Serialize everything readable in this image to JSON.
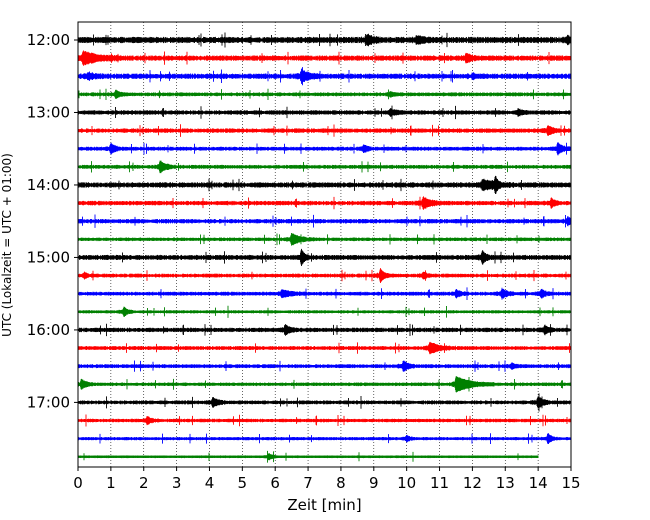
{
  "chart_data": {
    "type": "line",
    "subtype": "helicorder seismogram",
    "xlabel": "Zeit  [min]",
    "ylabel": "UTC (Lokalzeit = UTC + 01:00)",
    "xlim": [
      0,
      15
    ],
    "x_ticks": [
      "0",
      "1",
      "2",
      "3",
      "4",
      "5",
      "6",
      "7",
      "8",
      "9",
      "10",
      "11",
      "12",
      "13",
      "14",
      "15"
    ],
    "y_tick_labels": [
      "12:00",
      "13:00",
      "14:00",
      "15:00",
      "16:00",
      "17:00"
    ],
    "grid": "vertical dotted lines at each minute",
    "trace_minutes": 15,
    "trace_colors": [
      "#000000",
      "#ff0000",
      "#0000ff",
      "#008000"
    ],
    "traces": [
      {
        "start": "12:00",
        "color": "#000000",
        "amplitude": 0.35,
        "end_min": 15,
        "events": [
          {
            "t": 8.8,
            "a": 0.45,
            "d": 0.5
          },
          {
            "t": 10.3,
            "a": 0.3,
            "d": 0.6
          },
          {
            "t": 14.9,
            "a": 0.3,
            "d": 0.2
          }
        ]
      },
      {
        "start": "12:15",
        "color": "#ff0000",
        "amplitude": 0.3,
        "end_min": 15,
        "events": [
          {
            "t": 0.15,
            "a": 0.6,
            "d": 1.2
          },
          {
            "t": 11.8,
            "a": 0.35,
            "d": 0.5
          }
        ]
      },
      {
        "start": "12:30",
        "color": "#0000ff",
        "amplitude": 0.3,
        "end_min": 15,
        "events": [
          {
            "t": 0.3,
            "a": 0.3,
            "d": 0.5
          },
          {
            "t": 6.8,
            "a": 0.55,
            "d": 0.6
          },
          {
            "t": 12.0,
            "a": 0.2,
            "d": 0.3
          }
        ]
      },
      {
        "start": "12:45",
        "color": "#008000",
        "amplitude": 0.22,
        "end_min": 15,
        "events": [
          {
            "t": 1.15,
            "a": 0.4,
            "d": 0.3
          },
          {
            "t": 9.5,
            "a": 0.2,
            "d": 0.3
          }
        ]
      },
      {
        "start": "13:00",
        "color": "#000000",
        "amplitude": 0.25,
        "end_min": 15,
        "events": [
          {
            "t": 9.5,
            "a": 0.3,
            "d": 0.4
          },
          {
            "t": 13.4,
            "a": 0.3,
            "d": 0.3
          }
        ]
      },
      {
        "start": "13:15",
        "color": "#ff0000",
        "amplitude": 0.25,
        "end_min": 15,
        "events": [
          {
            "t": 14.3,
            "a": 0.45,
            "d": 0.4
          }
        ]
      },
      {
        "start": "13:30",
        "color": "#0000ff",
        "amplitude": 0.22,
        "end_min": 15,
        "events": [
          {
            "t": 1.0,
            "a": 0.45,
            "d": 0.4
          },
          {
            "t": 8.7,
            "a": 0.35,
            "d": 0.3
          },
          {
            "t": 14.6,
            "a": 0.55,
            "d": 0.4
          }
        ]
      },
      {
        "start": "13:45",
        "color": "#008000",
        "amplitude": 0.22,
        "end_min": 15,
        "events": [
          {
            "t": 2.5,
            "a": 0.55,
            "d": 0.5
          }
        ]
      },
      {
        "start": "14:00",
        "color": "#000000",
        "amplitude": 0.3,
        "end_min": 15,
        "events": [
          {
            "t": 12.3,
            "a": 0.45,
            "d": 1.0
          },
          {
            "t": 12.7,
            "a": 0.7,
            "d": 0.2
          }
        ]
      },
      {
        "start": "14:15",
        "color": "#ff0000",
        "amplitude": 0.25,
        "end_min": 15,
        "events": [
          {
            "t": 10.5,
            "a": 0.55,
            "d": 0.6
          },
          {
            "t": 14.4,
            "a": 0.4,
            "d": 0.3
          }
        ]
      },
      {
        "start": "14:30",
        "color": "#0000ff",
        "amplitude": 0.25,
        "end_min": 15,
        "events": [
          {
            "t": 14.9,
            "a": 0.35,
            "d": 0.3
          }
        ]
      },
      {
        "start": "14:45",
        "color": "#008000",
        "amplitude": 0.2,
        "end_min": 15,
        "events": [
          {
            "t": 6.5,
            "a": 0.55,
            "d": 0.7
          }
        ]
      },
      {
        "start": "15:00",
        "color": "#000000",
        "amplitude": 0.28,
        "end_min": 15,
        "events": [
          {
            "t": 6.8,
            "a": 0.7,
            "d": 0.3
          },
          {
            "t": 12.3,
            "a": 0.6,
            "d": 0.3
          }
        ]
      },
      {
        "start": "15:15",
        "color": "#ff0000",
        "amplitude": 0.22,
        "end_min": 15,
        "events": [
          {
            "t": 0.2,
            "a": 0.3,
            "d": 0.2
          },
          {
            "t": 9.2,
            "a": 0.7,
            "d": 0.3
          },
          {
            "t": 10.5,
            "a": 0.3,
            "d": 0.3
          }
        ]
      },
      {
        "start": "15:30",
        "color": "#0000ff",
        "amplitude": 0.22,
        "end_min": 15,
        "events": [
          {
            "t": 6.2,
            "a": 0.3,
            "d": 0.8
          },
          {
            "t": 11.5,
            "a": 0.35,
            "d": 0.4
          },
          {
            "t": 12.9,
            "a": 0.45,
            "d": 0.4
          },
          {
            "t": 14.1,
            "a": 0.4,
            "d": 0.3
          }
        ]
      },
      {
        "start": "15:45",
        "color": "#008000",
        "amplitude": 0.18,
        "end_min": 15,
        "events": [
          {
            "t": 1.4,
            "a": 0.45,
            "d": 0.3
          }
        ]
      },
      {
        "start": "16:00",
        "color": "#000000",
        "amplitude": 0.25,
        "end_min": 15,
        "events": [
          {
            "t": 6.3,
            "a": 0.45,
            "d": 0.4
          },
          {
            "t": 14.2,
            "a": 0.4,
            "d": 0.3
          }
        ]
      },
      {
        "start": "16:15",
        "color": "#ff0000",
        "amplitude": 0.22,
        "end_min": 15,
        "events": [
          {
            "t": 10.7,
            "a": 0.55,
            "d": 0.8
          }
        ]
      },
      {
        "start": "16:30",
        "color": "#0000ff",
        "amplitude": 0.22,
        "end_min": 15,
        "events": [
          {
            "t": 9.9,
            "a": 0.5,
            "d": 0.4
          },
          {
            "t": 13.2,
            "a": 0.3,
            "d": 0.3
          }
        ]
      },
      {
        "start": "16:45",
        "color": "#008000",
        "amplitude": 0.2,
        "end_min": 15,
        "events": [
          {
            "t": 0.1,
            "a": 0.45,
            "d": 0.4
          },
          {
            "t": 11.5,
            "a": 0.75,
            "d": 1.2
          }
        ]
      },
      {
        "start": "17:00",
        "color": "#000000",
        "amplitude": 0.22,
        "end_min": 15,
        "events": [
          {
            "t": 4.1,
            "a": 0.45,
            "d": 0.4
          },
          {
            "t": 14.0,
            "a": 0.6,
            "d": 0.4
          }
        ]
      },
      {
        "start": "17:15",
        "color": "#ff0000",
        "amplitude": 0.2,
        "end_min": 15,
        "events": [
          {
            "t": 2.1,
            "a": 0.35,
            "d": 0.4
          }
        ]
      },
      {
        "start": "17:30",
        "color": "#0000ff",
        "amplitude": 0.18,
        "end_min": 15,
        "events": [
          {
            "t": 10.0,
            "a": 0.3,
            "d": 0.3
          },
          {
            "t": 14.3,
            "a": 0.5,
            "d": 0.3
          }
        ]
      },
      {
        "start": "17:45",
        "color": "#008000",
        "amplitude": 0.15,
        "end_min": 14,
        "events": [
          {
            "t": 5.8,
            "a": 0.3,
            "d": 0.3
          }
        ]
      }
    ]
  }
}
